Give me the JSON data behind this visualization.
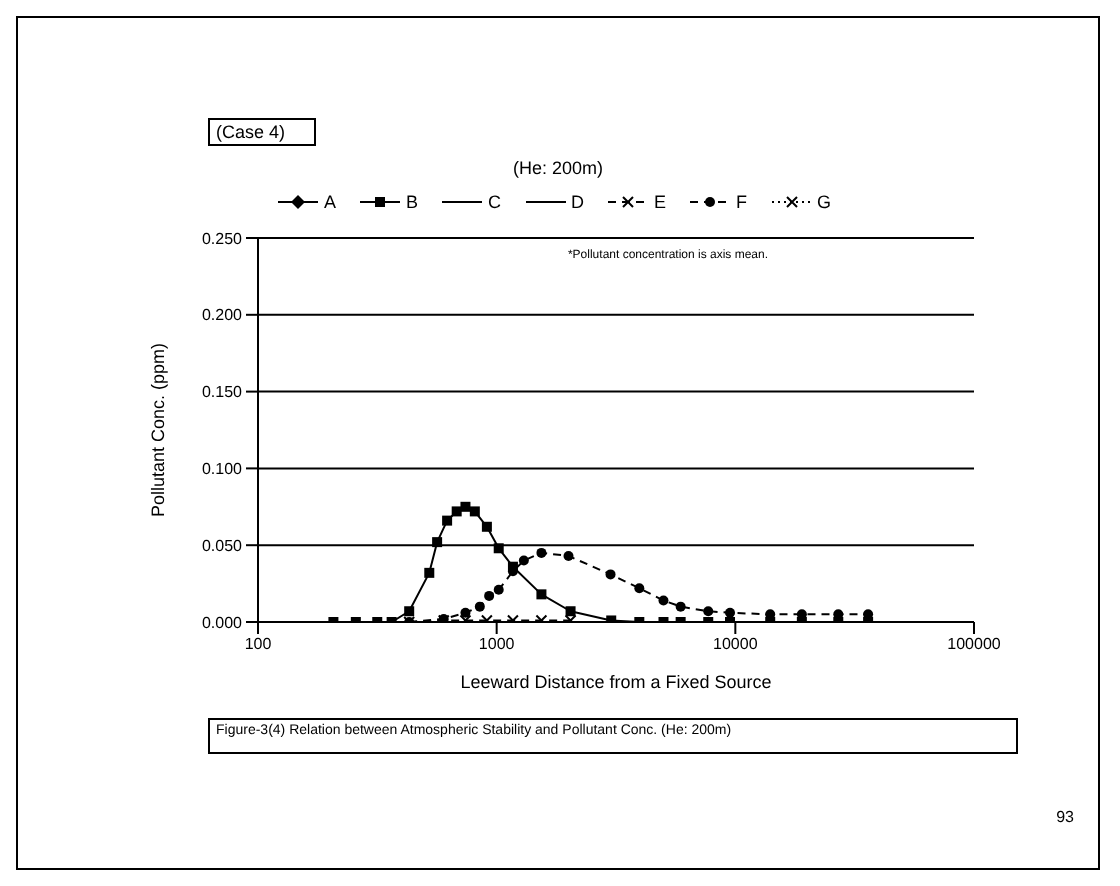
{
  "chart_data": {
    "type": "line",
    "title": "(Case 4)",
    "subtitle": "(He: 200m)",
    "xlabel": "Leeward Distance from a Fixed Source",
    "ylabel": "Pollutant Conc. (ppm)",
    "annotations": [
      "*Pollutant concentration is axis mean.",
      "Figure-3(4) Relation between Atmospheric Stability and Pollutant Conc. (He: 200m)",
      "93"
    ],
    "log": "x",
    "xlim": [
      100,
      100000
    ],
    "xticks": [
      100,
      1000,
      10000,
      100000
    ],
    "ylim": [
      0,
      0.25
    ],
    "yticks": [
      {
        "value": 0,
        "label": "0.000"
      },
      {
        "value": 0.05,
        "label": "0.050"
      },
      {
        "value": 0.1,
        "label": "0.100"
      },
      {
        "value": 0.15,
        "label": "0.150"
      },
      {
        "value": 0.2,
        "label": "0.200"
      },
      {
        "value": 0.25,
        "label": "0.250"
      }
    ],
    "grid": "y",
    "legend": "top",
    "series": [
      {
        "name": "A",
        "color": "#000000",
        "marker": "diamond",
        "line_style": "solid"
      },
      {
        "name": "B",
        "color": "#000000",
        "marker": "square",
        "line_style": "solid",
        "x": [
          207,
          257,
          316,
          363,
          430,
          522,
          563,
          620,
          680,
          740,
          810,
          910,
          1020,
          1170,
          1540,
          2040,
          3020,
          3960,
          5000,
          5900,
          7700,
          9500,
          14000,
          19000,
          27000,
          36000
        ],
        "values": [
          0,
          0,
          0,
          0,
          0.007,
          0.032,
          0.052,
          0.066,
          0.072,
          0.075,
          0.072,
          0.062,
          0.048,
          0.036,
          0.018,
          0.007,
          0.001,
          0,
          0,
          0,
          0,
          0,
          0,
          0,
          0,
          0
        ]
      },
      {
        "name": "C",
        "color": "#000000",
        "marker": "none",
        "line_style": "solid"
      },
      {
        "name": "D",
        "color": "#000000",
        "marker": "none",
        "line_style": "solid"
      },
      {
        "name": "E",
        "color": "#000000",
        "marker": "cross",
        "line_style": "dashed",
        "x": [
          430,
          600,
          740,
          910,
          1170,
          1540,
          2040
        ],
        "values": [
          0,
          0.001,
          0.001,
          0.001,
          0.001,
          0.001,
          0.001
        ]
      },
      {
        "name": "F",
        "color": "#000000",
        "marker": "circle",
        "line_style": "dashed",
        "x": [
          430,
          600,
          740,
          850,
          930,
          1020,
          1170,
          1300,
          1540,
          2000,
          3000,
          3960,
          5000,
          5900,
          7700,
          9500,
          14000,
          19000,
          27000,
          36000
        ],
        "values": [
          0,
          0.002,
          0.006,
          0.01,
          0.017,
          0.021,
          0.033,
          0.04,
          0.045,
          0.043,
          0.031,
          0.022,
          0.014,
          0.01,
          0.007,
          0.006,
          0.005,
          0.005,
          0.005,
          0.005
        ]
      },
      {
        "name": "G",
        "color": "#000000",
        "marker": "cross",
        "line_style": "dotted"
      }
    ]
  }
}
